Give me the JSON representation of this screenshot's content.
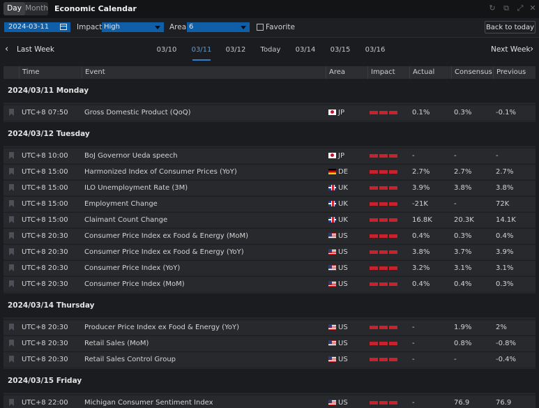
{
  "title_bar": {
    "view_options": [
      "Day",
      "Month"
    ],
    "active_view": "Day",
    "app_title": "Economic Calendar",
    "window_controls": [
      "refresh-icon",
      "restore-icon",
      "expand-icon",
      "close-icon"
    ]
  },
  "toolbar": {
    "date_value": "2024-03-11",
    "impact_label": "Impact",
    "impact_value": "High",
    "area_label": "Area",
    "area_value": "6",
    "favorite_label": "Favorite",
    "back_today_label": "Back to today",
    "accent_color": "#0f5fa8"
  },
  "nav": {
    "last_week": "Last Week",
    "next_week": "Next Week",
    "days": [
      "03/10",
      "03/11",
      "03/12",
      "Today",
      "03/14",
      "03/15",
      "03/16"
    ],
    "active_day": "03/11"
  },
  "table": {
    "columns": [
      "Time",
      "Event",
      "Area",
      "Impact",
      "Actual",
      "Consensus",
      "Previous"
    ],
    "groups": [
      {
        "title": "2024/03/11 Monday",
        "rows": [
          {
            "time": "UTC+8 07:50",
            "event": "Gross Domestic Product (QoQ)",
            "area": "JP",
            "flag": "jp",
            "impact": "high",
            "actual": "0.1%",
            "consensus": "0.3%",
            "previous": "-0.1%"
          }
        ]
      },
      {
        "title": "2024/03/12 Tuesday",
        "rows": [
          {
            "time": "UTC+8 10:00",
            "event": "BoJ Governor Ueda speech",
            "area": "JP",
            "flag": "jp",
            "impact": "high",
            "actual": "-",
            "consensus": "-",
            "previous": "-"
          },
          {
            "time": "UTC+8 15:00",
            "event": "Harmonized Index of Consumer Prices (YoY)",
            "area": "DE",
            "flag": "de",
            "impact": "high",
            "actual": "2.7%",
            "consensus": "2.7%",
            "previous": "2.7%"
          },
          {
            "time": "UTC+8 15:00",
            "event": "ILO Unemployment Rate (3M)",
            "area": "UK",
            "flag": "uk",
            "impact": "high",
            "actual": "3.9%",
            "consensus": "3.8%",
            "previous": "3.8%"
          },
          {
            "time": "UTC+8 15:00",
            "event": "Employment Change",
            "area": "UK",
            "flag": "uk",
            "impact": "high",
            "actual": "-21K",
            "consensus": "-",
            "previous": "72K"
          },
          {
            "time": "UTC+8 15:00",
            "event": "Claimant Count Change",
            "area": "UK",
            "flag": "uk",
            "impact": "high",
            "actual": "16.8K",
            "consensus": "20.3K",
            "previous": "14.1K"
          },
          {
            "time": "UTC+8 20:30",
            "event": "Consumer Price Index ex Food & Energy (MoM)",
            "area": "US",
            "flag": "us",
            "impact": "high",
            "actual": "0.4%",
            "consensus": "0.3%",
            "previous": "0.4%"
          },
          {
            "time": "UTC+8 20:30",
            "event": "Consumer Price Index ex Food & Energy (YoY)",
            "area": "US",
            "flag": "us",
            "impact": "high",
            "actual": "3.8%",
            "consensus": "3.7%",
            "previous": "3.9%"
          },
          {
            "time": "UTC+8 20:30",
            "event": "Consumer Price Index (YoY)",
            "area": "US",
            "flag": "us",
            "impact": "high",
            "actual": "3.2%",
            "consensus": "3.1%",
            "previous": "3.1%"
          },
          {
            "time": "UTC+8 20:30",
            "event": "Consumer Price Index (MoM)",
            "area": "US",
            "flag": "us",
            "impact": "high",
            "actual": "0.4%",
            "consensus": "0.4%",
            "previous": "0.3%"
          }
        ]
      },
      {
        "title": "2024/03/14 Thursday",
        "rows": [
          {
            "time": "UTC+8 20:30",
            "event": "Producer Price Index ex Food & Energy (YoY)",
            "area": "US",
            "flag": "us",
            "impact": "high",
            "actual": "-",
            "consensus": "1.9%",
            "previous": "2%"
          },
          {
            "time": "UTC+8 20:30",
            "event": "Retail Sales (MoM)",
            "area": "US",
            "flag": "us",
            "impact": "high",
            "actual": "-",
            "consensus": "0.8%",
            "previous": "-0.8%"
          },
          {
            "time": "UTC+8 20:30",
            "event": "Retail Sales Control Group",
            "area": "US",
            "flag": "us",
            "impact": "high",
            "actual": "-",
            "consensus": "-",
            "previous": "-0.4%"
          }
        ]
      },
      {
        "title": "2024/03/15 Friday",
        "rows": [
          {
            "time": "UTC+8 22:00",
            "event": "Michigan Consumer Sentiment Index",
            "area": "US",
            "flag": "us",
            "impact": "high",
            "actual": "-",
            "consensus": "76.9",
            "previous": "76.9"
          }
        ]
      }
    ],
    "impact_color": "#c8232c"
  }
}
